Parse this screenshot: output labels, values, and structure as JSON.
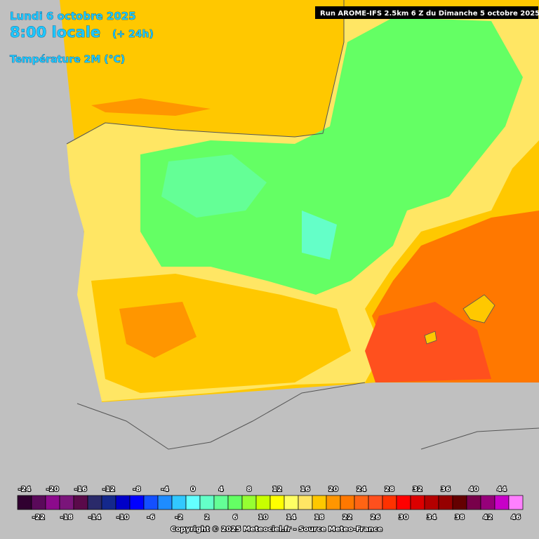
{
  "header": {
    "date": "Lundi 6 octobre 2025",
    "time": "8:00 locale",
    "lead": "(+ 24h)",
    "variable": "Température 2M (°C)",
    "run": "Run AROME-IFS 2.5km 6 Z du Dimanche 5 octobre 2025"
  },
  "legend": {
    "values": [
      -24,
      -22,
      -20,
      -18,
      -16,
      -14,
      -12,
      -10,
      -8,
      -6,
      -4,
      -2,
      0,
      2,
      4,
      6,
      8,
      10,
      12,
      14,
      16,
      18,
      20,
      22,
      24,
      26,
      28,
      30,
      32,
      34,
      36,
      38,
      40,
      42,
      44,
      46
    ],
    "colors": [
      "#300030",
      "#5a0a5a",
      "#8c0a8c",
      "#7a157a",
      "#5a0a4a",
      "#2a2a6a",
      "#14288c",
      "#0000c8",
      "#0000ff",
      "#1450ff",
      "#1e8cff",
      "#32c8ff",
      "#64ffff",
      "#64ffc8",
      "#64ff96",
      "#64ff64",
      "#96ff32",
      "#c8ff00",
      "#ffff00",
      "#ffff64",
      "#ffe664",
      "#ffc800",
      "#ff9600",
      "#ff7800",
      "#ff6414",
      "#ff501e",
      "#ff3200",
      "#ff0000",
      "#dc0000",
      "#b40000",
      "#960000",
      "#640000",
      "#78004a",
      "#96007a",
      "#c800c8",
      "#ff80ff"
    ]
  },
  "footer": {
    "copyright": "Copyright © 2025 Meteociel.fr - Source Meteo-France"
  }
}
